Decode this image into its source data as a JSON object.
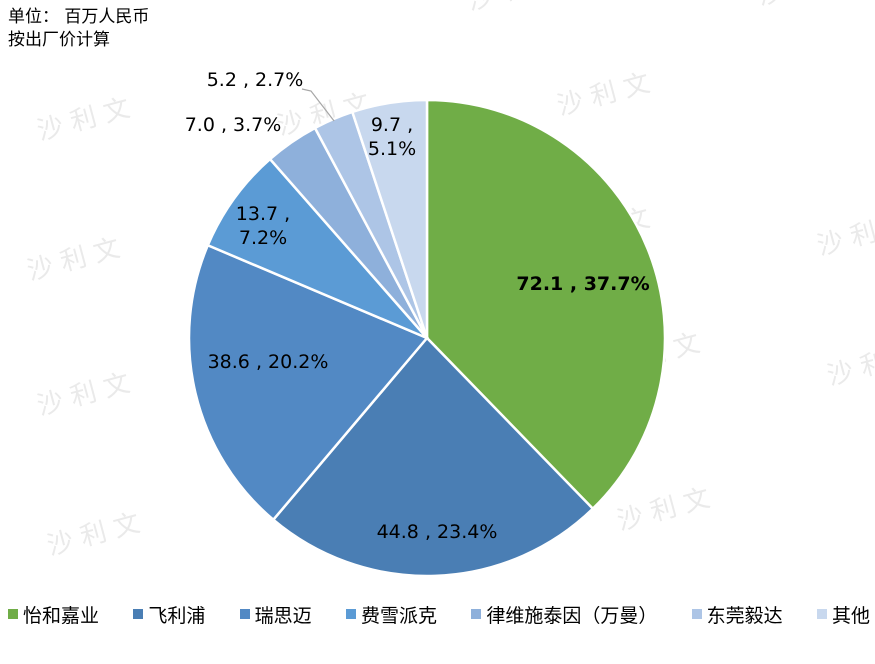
{
  "header": {
    "unit_line1": "单位：  百万人民币",
    "unit_line2": "按出厂价计算"
  },
  "watermark": {
    "text": "沙 利 文"
  },
  "chart_data": {
    "type": "pie",
    "start_angle_deg": 0,
    "direction": "clockwise",
    "slices": [
      {
        "name": "怡和嘉业",
        "value": 72.1,
        "percent": "37.7%",
        "label": "72.1 , 37.7%",
        "color": "#70AD47",
        "bold": true
      },
      {
        "name": "飞利浦",
        "value": 44.8,
        "percent": "23.4%",
        "label": "44.8 , 23.4%",
        "color": "#4A7EB4"
      },
      {
        "name": "瑞思迈",
        "value": 38.6,
        "percent": "20.2%",
        "label": "38.6 , 20.2%",
        "color": "#5289C4"
      },
      {
        "name": "费雪派克",
        "value": 13.7,
        "percent": "7.2%",
        "label_lines": [
          "13.7 ,",
          "7.2%"
        ],
        "color": "#5B9BD5"
      },
      {
        "name": "律维施泰因（万曼）",
        "value": 7.0,
        "percent": "3.7%",
        "label": "7.0 , 3.7%",
        "color": "#8EB0DB"
      },
      {
        "name": "东莞毅达",
        "value": 5.2,
        "percent": "2.7%",
        "label": "5.2 , 2.7%",
        "color": "#ADC5E6"
      },
      {
        "name": "其他",
        "value": 9.7,
        "percent": "5.1%",
        "label_lines": [
          "9.7 ,",
          "5.1%"
        ],
        "color": "#C8D8EE"
      }
    ],
    "legend_position": "bottom"
  }
}
